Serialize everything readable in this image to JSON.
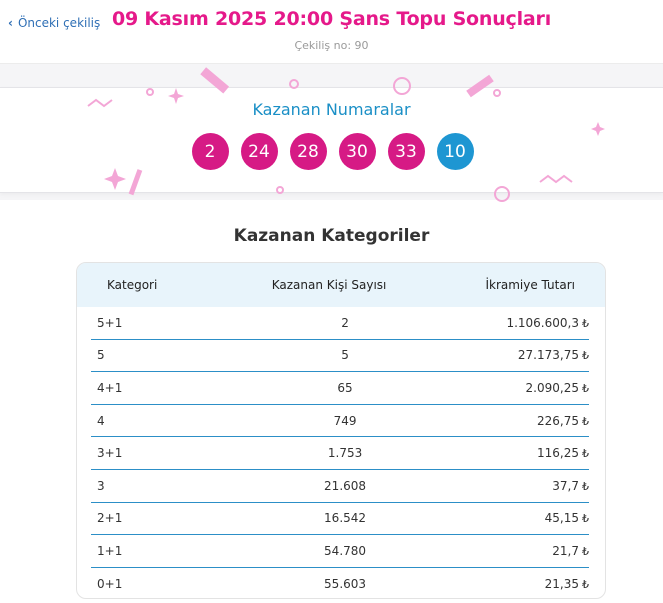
{
  "header": {
    "back_label": "Önceki çekiliş",
    "title": "09 Kasım 2025 20:00 Şans Topu Sonuçları",
    "draw_number": "Çekiliş no: 90"
  },
  "winners": {
    "title": "Kazanan Numaralar",
    "main_numbers": [
      "2",
      "24",
      "28",
      "30",
      "33"
    ],
    "bonus_number": "10",
    "colors": {
      "main": "#d61a85",
      "bonus": "#1e96d2"
    }
  },
  "categories": {
    "title": "Kazanan Kategoriler",
    "columns": [
      "Kategori",
      "Kazanan Kişi Sayısı",
      "İkramiye Tutarı"
    ],
    "currency_symbol": "₺",
    "rows": [
      {
        "category": "5+1",
        "winners": "2",
        "prize": "1.106.600,3"
      },
      {
        "category": "5",
        "winners": "5",
        "prize": "27.173,75"
      },
      {
        "category": "4+1",
        "winners": "65",
        "prize": "2.090,25"
      },
      {
        "category": "4",
        "winners": "749",
        "prize": "226,75"
      },
      {
        "category": "3+1",
        "winners": "1.753",
        "prize": "116,25"
      },
      {
        "category": "3",
        "winners": "21.608",
        "prize": "37,7"
      },
      {
        "category": "2+1",
        "winners": "16.542",
        "prize": "45,15"
      },
      {
        "category": "1+1",
        "winners": "54.780",
        "prize": "21,7"
      },
      {
        "category": "0+1",
        "winners": "55.603",
        "prize": "21,35"
      }
    ]
  },
  "theme": {
    "accent": "#e5198a",
    "link": "#2f6fb5",
    "table_rule": "#2c8fc7",
    "header_bg": "#e8f4fb"
  }
}
